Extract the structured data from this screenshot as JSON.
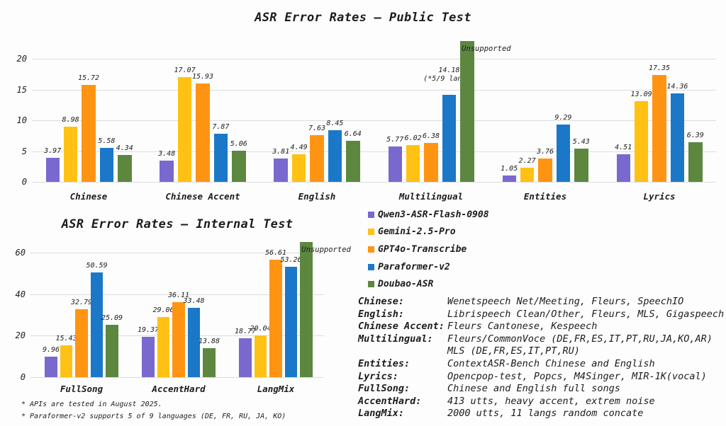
{
  "page": {
    "background": "#fdfdfd"
  },
  "palette": {
    "gridline": "#dcdcdc",
    "text": "#1c1c1c"
  },
  "chart_data": [
    {
      "type": "bar",
      "title": "ASR Error Rates – Public Test",
      "categories": [
        "Chinese",
        "Chinese Accent",
        "English",
        "Multilingual",
        "Entities",
        "Lyrics"
      ],
      "series": [
        {
          "name": "Qwen3-ASR-Flash-0908",
          "color": "#7969CE",
          "values": [
            3.97,
            3.48,
            3.81,
            5.77,
            1.05,
            4.51
          ]
        },
        {
          "name": "Gemini-2.5-Pro",
          "color": "#FFC113",
          "values": [
            8.98,
            17.07,
            4.49,
            6.02,
            2.27,
            13.09
          ]
        },
        {
          "name": "GPT4o-Transcribe",
          "color": "#FF9413",
          "values": [
            15.72,
            15.93,
            7.63,
            6.38,
            3.76,
            17.35
          ]
        },
        {
          "name": "Paraformer-v2",
          "color": "#1B78C8",
          "values": [
            5.58,
            7.87,
            8.45,
            14.18,
            9.29,
            14.36
          ]
        },
        {
          "name": "Doubao-ASR",
          "color": "#5D873F",
          "values": [
            4.34,
            5.06,
            6.64,
            "Unsupported",
            5.43,
            6.39
          ]
        }
      ],
      "annotations": [
        {
          "series": "Paraformer-v2",
          "category": "Multilingual",
          "text": "(*5/9 langs)"
        }
      ],
      "ylim": [
        0,
        20
      ],
      "yticks": [
        0,
        5,
        10,
        15,
        20
      ],
      "grid": true,
      "legend_position": "center-right"
    },
    {
      "type": "bar",
      "title": "ASR Error Rates – Internal Test",
      "categories": [
        "FullSong",
        "AccentHard",
        "LangMix"
      ],
      "series": [
        {
          "name": "Qwen3-ASR-Flash-0908",
          "color": "#7969CE",
          "values": [
            9.96,
            19.37,
            18.77
          ]
        },
        {
          "name": "Gemini-2.5-Pro",
          "color": "#FFC113",
          "values": [
            15.43,
            29.06,
            20.04
          ]
        },
        {
          "name": "GPT4o-Transcribe",
          "color": "#FF9413",
          "values": [
            32.79,
            36.11,
            56.61
          ]
        },
        {
          "name": "Paraformer-v2",
          "color": "#1B78C8",
          "values": [
            50.59,
            33.48,
            53.26
          ]
        },
        {
          "name": "Doubao-ASR",
          "color": "#5D873F",
          "values": [
            25.09,
            13.88,
            "Unsupported"
          ]
        }
      ],
      "annotations": [],
      "ylim": [
        0,
        60
      ],
      "yticks": [
        0,
        20,
        40,
        60
      ],
      "grid": true,
      "legend_position": "none"
    }
  ],
  "unsupported_label": "Unsupported",
  "descriptions": {
    "rows": [
      {
        "term": "Chinese:",
        "lines": [
          "Wenetspeech Net/Meeting, Fleurs, SpeechIO"
        ]
      },
      {
        "term": "English:",
        "lines": [
          "Librispeech Clean/Other, Fleurs, MLS, Gigaspeech"
        ]
      },
      {
        "term": "Chinese Accent:",
        "lines": [
          "Fleurs Cantonese, Kespeech"
        ]
      },
      {
        "term": "Multilingual:",
        "lines": [
          "Fleurs/CommonVoce (DE,FR,ES,IT,PT,RU,JA,KO,AR)",
          "MLS (DE,FR,ES,IT,PT,RU)"
        ]
      },
      {
        "term": "Entities:",
        "lines": [
          "ContextASR-Bench Chinese and English"
        ]
      },
      {
        "term": "Lyrics:",
        "lines": [
          "Opencpop-test, Popcs, M4Singer, MIR-1K(vocal)"
        ]
      },
      {
        "term": "FullSong:",
        "lines": [
          "Chinese and English full songs"
        ]
      },
      {
        "term": "AccentHard:",
        "lines": [
          "413 utts, heavy accent, extrem noise"
        ]
      },
      {
        "term": "LangMix:",
        "lines": [
          "2000 utts, 11 langs random concate"
        ]
      }
    ]
  },
  "footnotes": [
    "* APIs are tested in August 2025.",
    "* Paraformer-v2 supports 5 of 9 languages (DE, FR, RU, JA, KO)"
  ]
}
